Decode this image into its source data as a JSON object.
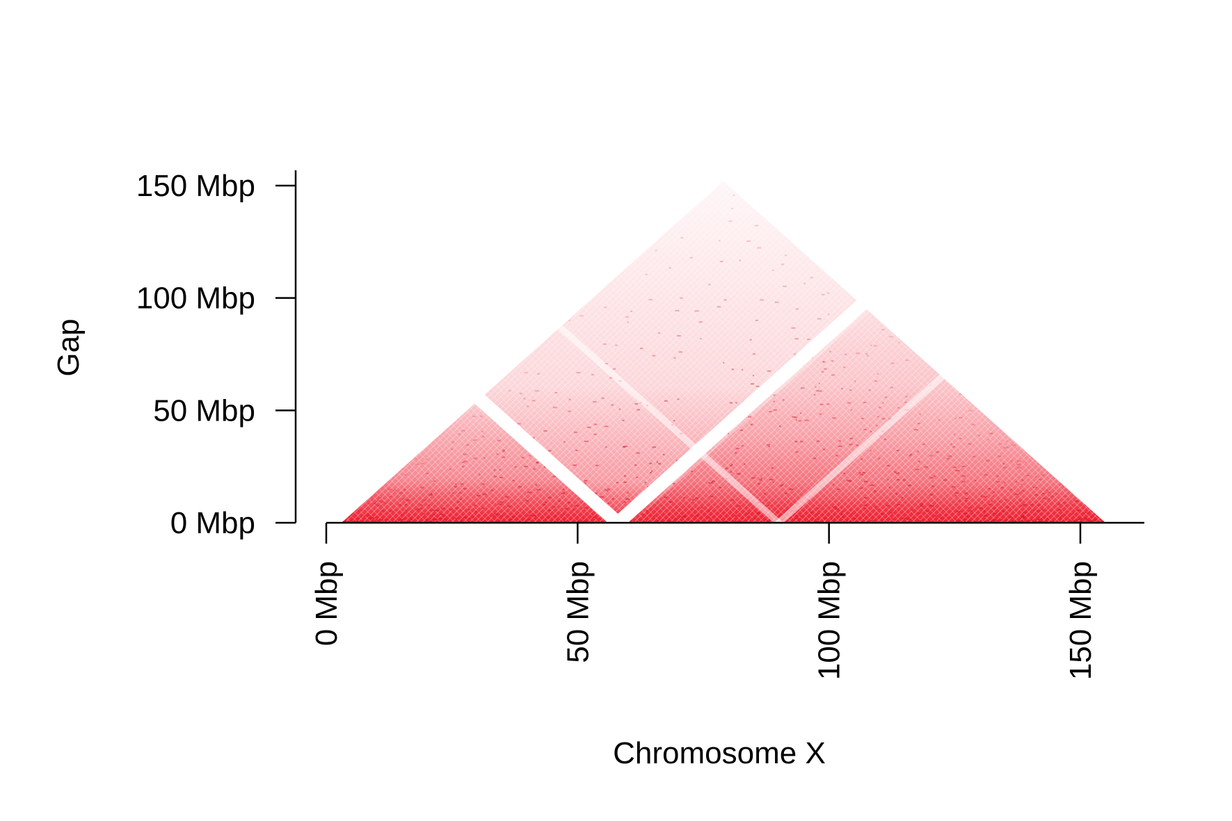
{
  "chart_data": {
    "type": "heatmap",
    "subtype": "triangular-contact-map",
    "title": "",
    "xlabel": "Chromosome X",
    "ylabel": "Gap",
    "x_unit": "Mbp",
    "y_unit": "Mbp",
    "xlim": [
      0,
      162
    ],
    "ylim": [
      0,
      152
    ],
    "x_ticks": [
      0,
      50,
      100,
      150
    ],
    "y_ticks": [
      0,
      50,
      100,
      150
    ],
    "x_tick_labels": [
      "0 Mbp",
      "50 Mbp",
      "100 Mbp",
      "150 Mbp"
    ],
    "y_tick_labels": [
      "0 Mbp",
      "50 Mbp",
      "100 Mbp",
      "150 Mbp"
    ],
    "data_range": [
      3,
      155
    ],
    "apex": {
      "position": 79,
      "gap": 152
    },
    "grid": false,
    "legend": "none",
    "color_scale": {
      "low": "#ffffff",
      "high": "#ee2233",
      "description": "contact intensity, strongest near the diagonal (gap 0), fading with increasing gap"
    },
    "empty_bands": [
      {
        "start": 56,
        "end": 60,
        "description": "centromere gap — white stripes through the map"
      },
      {
        "start": 89,
        "end": 91,
        "description": "faint secondary gap"
      }
    ],
    "domains": [
      {
        "start": 3,
        "end": 58,
        "relative_intensity": "high"
      },
      {
        "start": 61,
        "end": 155,
        "relative_intensity": "high"
      },
      {
        "start": 3,
        "end": 155,
        "relative_intensity": "low"
      }
    ]
  }
}
